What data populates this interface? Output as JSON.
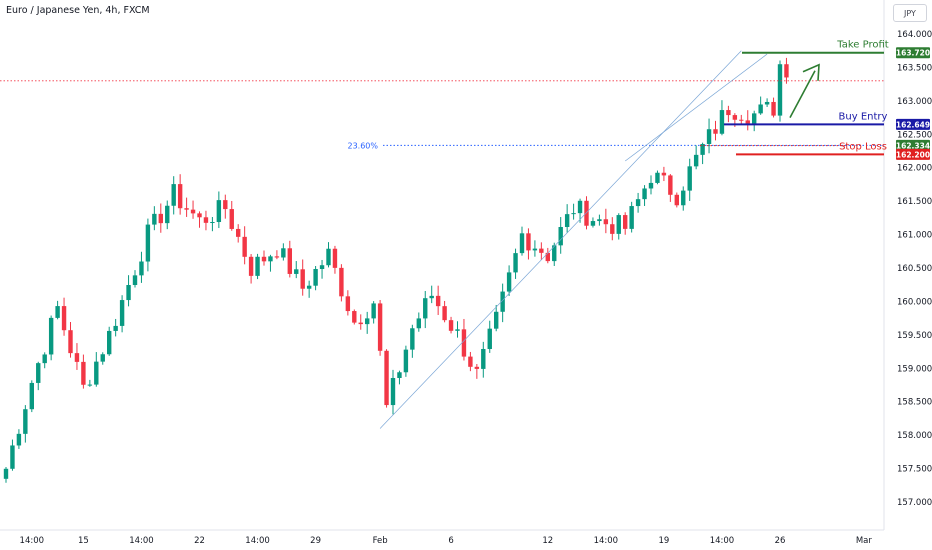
{
  "header": {
    "title": "Euro / Japanese Yen, 4h, FXCM",
    "currency": "JPY"
  },
  "colors": {
    "up": "#089981",
    "down": "#f23645",
    "take_profit": "#2e7d32",
    "buy_entry": "#1a1aa6",
    "stop_loss": "#e02020",
    "fib": "#2962ff",
    "last_price_line": "#f23645"
  },
  "chart_data": {
    "type": "candlestick",
    "title": "Euro / Japanese Yen, 4h, FXCM",
    "currency": "JPY",
    "ylim": [
      156.8,
      164.2
    ],
    "y_ticks": [
      157.0,
      157.5,
      158.0,
      158.5,
      159.0,
      159.5,
      160.0,
      160.5,
      161.0,
      161.5,
      162.0,
      162.5,
      163.0,
      163.5,
      164.0
    ],
    "y_tick_labels": [
      "157.000",
      "157.500",
      "158.000",
      "158.500",
      "159.000",
      "159.500",
      "160.000",
      "160.500",
      "161.000",
      "161.500",
      "162.000",
      "162.500",
      "163.000",
      "163.500",
      "164.000"
    ],
    "x_ticks": [
      {
        "label": "14:00",
        "index": 4
      },
      {
        "label": "15",
        "index": 12
      },
      {
        "label": "14:00",
        "index": 21
      },
      {
        "label": "22",
        "index": 30
      },
      {
        "label": "14:00",
        "index": 39
      },
      {
        "label": "29",
        "index": 48
      },
      {
        "label": "Feb",
        "index": 58
      },
      {
        "label": "6",
        "index": 69
      },
      {
        "label": "12",
        "index": 84
      },
      {
        "label": "14:00",
        "index": 93
      },
      {
        "label": "19",
        "index": 102
      },
      {
        "label": "14:00",
        "index": 111
      },
      {
        "label": "26",
        "index": 120
      },
      {
        "label": "Mar",
        "index": 133
      }
    ],
    "bars": 122,
    "anchors": [
      [
        0,
        157.5
      ],
      [
        4,
        158.8
      ],
      [
        8,
        159.9
      ],
      [
        12,
        158.7
      ],
      [
        16,
        159.5
      ],
      [
        22,
        161.0
      ],
      [
        26,
        161.6
      ],
      [
        30,
        161.2
      ],
      [
        34,
        161.4
      ],
      [
        38,
        160.5
      ],
      [
        42,
        160.8
      ],
      [
        46,
        160.2
      ],
      [
        50,
        160.7
      ],
      [
        54,
        159.7
      ],
      [
        57,
        160.0
      ],
      [
        59,
        158.4
      ],
      [
        63,
        159.6
      ],
      [
        66,
        160.1
      ],
      [
        70,
        159.5
      ],
      [
        73,
        158.9
      ],
      [
        76,
        159.7
      ],
      [
        80,
        161.0
      ],
      [
        84,
        160.7
      ],
      [
        88,
        161.4
      ],
      [
        92,
        161.2
      ],
      [
        96,
        161.1
      ],
      [
        100,
        161.9
      ],
      [
        104,
        161.6
      ],
      [
        108,
        162.3
      ],
      [
        112,
        162.9
      ],
      [
        116,
        162.8
      ],
      [
        119,
        162.9
      ],
      [
        120,
        163.55
      ],
      [
        121,
        163.35
      ]
    ],
    "current_price": 163.3,
    "levels": [
      {
        "name": "Take Profit",
        "price": 163.72,
        "label": "163.720",
        "color": "#2e7d32"
      },
      {
        "name": "Buy Entry",
        "price": 162.649,
        "label": "162.649",
        "color": "#1a1aa6"
      },
      {
        "name": "Stop Loss",
        "price": 162.2,
        "label": "162.200",
        "color": "#e02020"
      }
    ],
    "fib": {
      "label": "23.60%",
      "price": 162.334,
      "price_label": "162.334"
    },
    "annotations": [
      "Take Profit",
      "Buy Entry",
      "Stop Loss"
    ]
  }
}
